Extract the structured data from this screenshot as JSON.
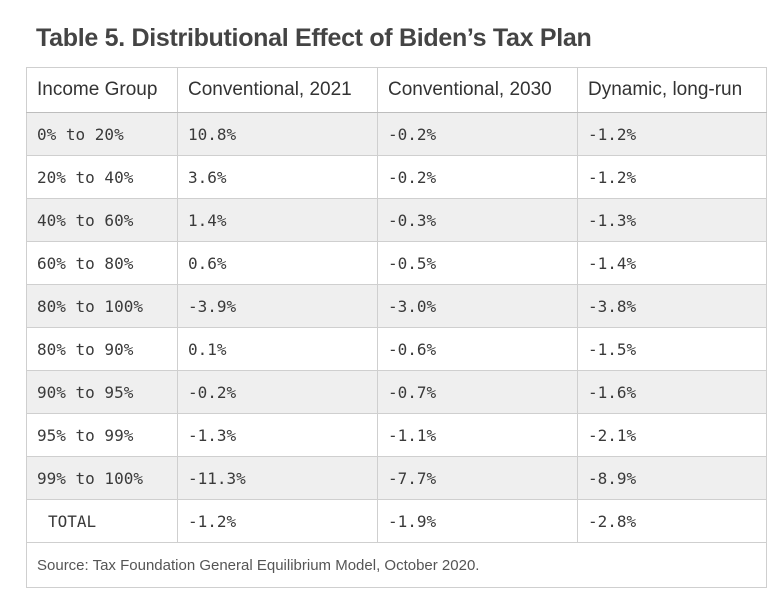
{
  "title": "Table 5. Distributional Effect of Biden’s Tax Plan",
  "table": {
    "headers": [
      "Income Group",
      "Conventional, 2021",
      "Conventional, 2030",
      "Dynamic, long-run"
    ],
    "rows": [
      [
        "0% to 20%",
        "10.8%",
        "-0.2%",
        "-1.2%"
      ],
      [
        "20% to 40%",
        "3.6%",
        "-0.2%",
        "-1.2%"
      ],
      [
        "40% to 60%",
        "1.4%",
        "-0.3%",
        "-1.3%"
      ],
      [
        "60% to 80%",
        "0.6%",
        "-0.5%",
        "-1.4%"
      ],
      [
        "80% to 100%",
        "-3.9%",
        "-3.0%",
        "-3.8%"
      ],
      [
        "80% to 90%",
        "0.1%",
        "-0.6%",
        "-1.5%"
      ],
      [
        "90% to 95%",
        "-0.2%",
        "-0.7%",
        "-1.6%"
      ],
      [
        "95% to 99%",
        "-1.3%",
        "-1.1%",
        "-2.1%"
      ],
      [
        "99% to 100%",
        "-11.3%",
        "-7.7%",
        "-8.9%"
      ],
      [
        "TOTAL",
        "-1.2%",
        "-1.9%",
        "-2.8%"
      ]
    ]
  },
  "source": "Source: Tax Foundation General Equilibrium Model, October 2020."
}
